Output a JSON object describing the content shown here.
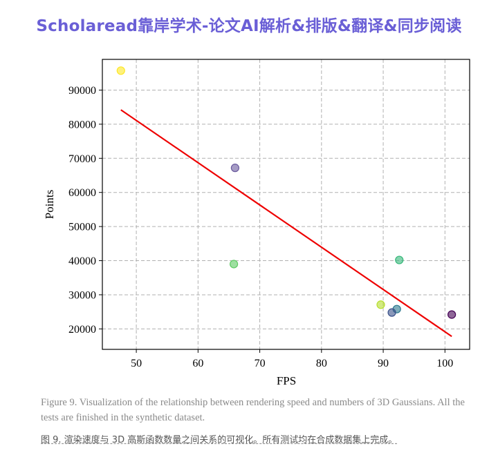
{
  "banner": {
    "title": "Scholaread靠岸学术-论文AI解析&排版&翻译&同步阅读"
  },
  "caption": {
    "en": "Figure 9. Visualization of the relationship between rendering speed and numbers of 3D Gaussians. All the tests are finished in the synthetic dataset.",
    "zh": "图 9. 渲染速度与 3D 高斯函数数量之间关系的可视化。所有测试均在合成数据集上完成。"
  },
  "chart_data": {
    "type": "scatter",
    "title": "",
    "xlabel": "FPS",
    "ylabel": "Points",
    "xlim": [
      44.5,
      104
    ],
    "ylim": [
      14000,
      99000
    ],
    "xticks": [
      50,
      60,
      70,
      80,
      90,
      100
    ],
    "yticks": [
      20000,
      30000,
      40000,
      50000,
      60000,
      70000,
      80000,
      90000
    ],
    "grid": true,
    "points": [
      {
        "x": 47.5,
        "y": 95700,
        "color": "#fde725"
      },
      {
        "x": 66.0,
        "y": 67200,
        "color": "#6a5a9e"
      },
      {
        "x": 65.8,
        "y": 39000,
        "color": "#5ec962"
      },
      {
        "x": 92.6,
        "y": 40200,
        "color": "#35b779"
      },
      {
        "x": 89.6,
        "y": 27100,
        "color": "#b5de2b"
      },
      {
        "x": 92.2,
        "y": 25800,
        "color": "#2a788e"
      },
      {
        "x": 91.4,
        "y": 24800,
        "color": "#3b528b"
      },
      {
        "x": 101.1,
        "y": 24200,
        "color": "#440154"
      }
    ],
    "fit_line": {
      "x": [
        47.5,
        101.1
      ],
      "y": [
        84200,
        17800
      ],
      "color": "#ee0000"
    }
  }
}
